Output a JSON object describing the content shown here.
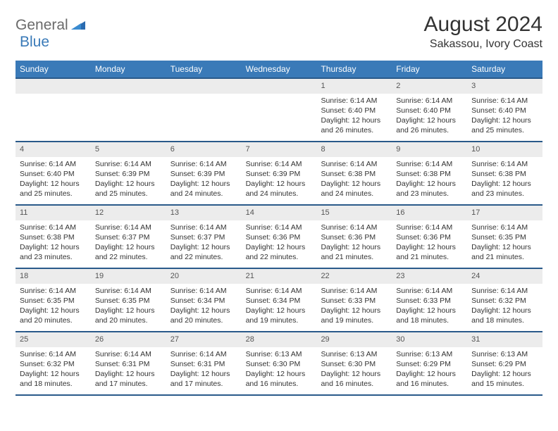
{
  "logo": {
    "part1": "General",
    "part2": "Blue"
  },
  "title": "August 2024",
  "location": "Sakassou, Ivory Coast",
  "colors": {
    "header_bg": "#3a7ab8",
    "header_border": "#2a5a8a",
    "daynum_bg": "#ececec",
    "text": "#333333"
  },
  "day_headers": [
    "Sunday",
    "Monday",
    "Tuesday",
    "Wednesday",
    "Thursday",
    "Friday",
    "Saturday"
  ],
  "weeks": [
    [
      {
        "day": "",
        "sunrise": "",
        "sunset": "",
        "daylight": ""
      },
      {
        "day": "",
        "sunrise": "",
        "sunset": "",
        "daylight": ""
      },
      {
        "day": "",
        "sunrise": "",
        "sunset": "",
        "daylight": ""
      },
      {
        "day": "",
        "sunrise": "",
        "sunset": "",
        "daylight": ""
      },
      {
        "day": "1",
        "sunrise": "Sunrise: 6:14 AM",
        "sunset": "Sunset: 6:40 PM",
        "daylight": "Daylight: 12 hours and 26 minutes."
      },
      {
        "day": "2",
        "sunrise": "Sunrise: 6:14 AM",
        "sunset": "Sunset: 6:40 PM",
        "daylight": "Daylight: 12 hours and 26 minutes."
      },
      {
        "day": "3",
        "sunrise": "Sunrise: 6:14 AM",
        "sunset": "Sunset: 6:40 PM",
        "daylight": "Daylight: 12 hours and 25 minutes."
      }
    ],
    [
      {
        "day": "4",
        "sunrise": "Sunrise: 6:14 AM",
        "sunset": "Sunset: 6:40 PM",
        "daylight": "Daylight: 12 hours and 25 minutes."
      },
      {
        "day": "5",
        "sunrise": "Sunrise: 6:14 AM",
        "sunset": "Sunset: 6:39 PM",
        "daylight": "Daylight: 12 hours and 25 minutes."
      },
      {
        "day": "6",
        "sunrise": "Sunrise: 6:14 AM",
        "sunset": "Sunset: 6:39 PM",
        "daylight": "Daylight: 12 hours and 24 minutes."
      },
      {
        "day": "7",
        "sunrise": "Sunrise: 6:14 AM",
        "sunset": "Sunset: 6:39 PM",
        "daylight": "Daylight: 12 hours and 24 minutes."
      },
      {
        "day": "8",
        "sunrise": "Sunrise: 6:14 AM",
        "sunset": "Sunset: 6:38 PM",
        "daylight": "Daylight: 12 hours and 24 minutes."
      },
      {
        "day": "9",
        "sunrise": "Sunrise: 6:14 AM",
        "sunset": "Sunset: 6:38 PM",
        "daylight": "Daylight: 12 hours and 23 minutes."
      },
      {
        "day": "10",
        "sunrise": "Sunrise: 6:14 AM",
        "sunset": "Sunset: 6:38 PM",
        "daylight": "Daylight: 12 hours and 23 minutes."
      }
    ],
    [
      {
        "day": "11",
        "sunrise": "Sunrise: 6:14 AM",
        "sunset": "Sunset: 6:38 PM",
        "daylight": "Daylight: 12 hours and 23 minutes."
      },
      {
        "day": "12",
        "sunrise": "Sunrise: 6:14 AM",
        "sunset": "Sunset: 6:37 PM",
        "daylight": "Daylight: 12 hours and 22 minutes."
      },
      {
        "day": "13",
        "sunrise": "Sunrise: 6:14 AM",
        "sunset": "Sunset: 6:37 PM",
        "daylight": "Daylight: 12 hours and 22 minutes."
      },
      {
        "day": "14",
        "sunrise": "Sunrise: 6:14 AM",
        "sunset": "Sunset: 6:36 PM",
        "daylight": "Daylight: 12 hours and 22 minutes."
      },
      {
        "day": "15",
        "sunrise": "Sunrise: 6:14 AM",
        "sunset": "Sunset: 6:36 PM",
        "daylight": "Daylight: 12 hours and 21 minutes."
      },
      {
        "day": "16",
        "sunrise": "Sunrise: 6:14 AM",
        "sunset": "Sunset: 6:36 PM",
        "daylight": "Daylight: 12 hours and 21 minutes."
      },
      {
        "day": "17",
        "sunrise": "Sunrise: 6:14 AM",
        "sunset": "Sunset: 6:35 PM",
        "daylight": "Daylight: 12 hours and 21 minutes."
      }
    ],
    [
      {
        "day": "18",
        "sunrise": "Sunrise: 6:14 AM",
        "sunset": "Sunset: 6:35 PM",
        "daylight": "Daylight: 12 hours and 20 minutes."
      },
      {
        "day": "19",
        "sunrise": "Sunrise: 6:14 AM",
        "sunset": "Sunset: 6:35 PM",
        "daylight": "Daylight: 12 hours and 20 minutes."
      },
      {
        "day": "20",
        "sunrise": "Sunrise: 6:14 AM",
        "sunset": "Sunset: 6:34 PM",
        "daylight": "Daylight: 12 hours and 20 minutes."
      },
      {
        "day": "21",
        "sunrise": "Sunrise: 6:14 AM",
        "sunset": "Sunset: 6:34 PM",
        "daylight": "Daylight: 12 hours and 19 minutes."
      },
      {
        "day": "22",
        "sunrise": "Sunrise: 6:14 AM",
        "sunset": "Sunset: 6:33 PM",
        "daylight": "Daylight: 12 hours and 19 minutes."
      },
      {
        "day": "23",
        "sunrise": "Sunrise: 6:14 AM",
        "sunset": "Sunset: 6:33 PM",
        "daylight": "Daylight: 12 hours and 18 minutes."
      },
      {
        "day": "24",
        "sunrise": "Sunrise: 6:14 AM",
        "sunset": "Sunset: 6:32 PM",
        "daylight": "Daylight: 12 hours and 18 minutes."
      }
    ],
    [
      {
        "day": "25",
        "sunrise": "Sunrise: 6:14 AM",
        "sunset": "Sunset: 6:32 PM",
        "daylight": "Daylight: 12 hours and 18 minutes."
      },
      {
        "day": "26",
        "sunrise": "Sunrise: 6:14 AM",
        "sunset": "Sunset: 6:31 PM",
        "daylight": "Daylight: 12 hours and 17 minutes."
      },
      {
        "day": "27",
        "sunrise": "Sunrise: 6:14 AM",
        "sunset": "Sunset: 6:31 PM",
        "daylight": "Daylight: 12 hours and 17 minutes."
      },
      {
        "day": "28",
        "sunrise": "Sunrise: 6:13 AM",
        "sunset": "Sunset: 6:30 PM",
        "daylight": "Daylight: 12 hours and 16 minutes."
      },
      {
        "day": "29",
        "sunrise": "Sunrise: 6:13 AM",
        "sunset": "Sunset: 6:30 PM",
        "daylight": "Daylight: 12 hours and 16 minutes."
      },
      {
        "day": "30",
        "sunrise": "Sunrise: 6:13 AM",
        "sunset": "Sunset: 6:29 PM",
        "daylight": "Daylight: 12 hours and 16 minutes."
      },
      {
        "day": "31",
        "sunrise": "Sunrise: 6:13 AM",
        "sunset": "Sunset: 6:29 PM",
        "daylight": "Daylight: 12 hours and 15 minutes."
      }
    ]
  ]
}
